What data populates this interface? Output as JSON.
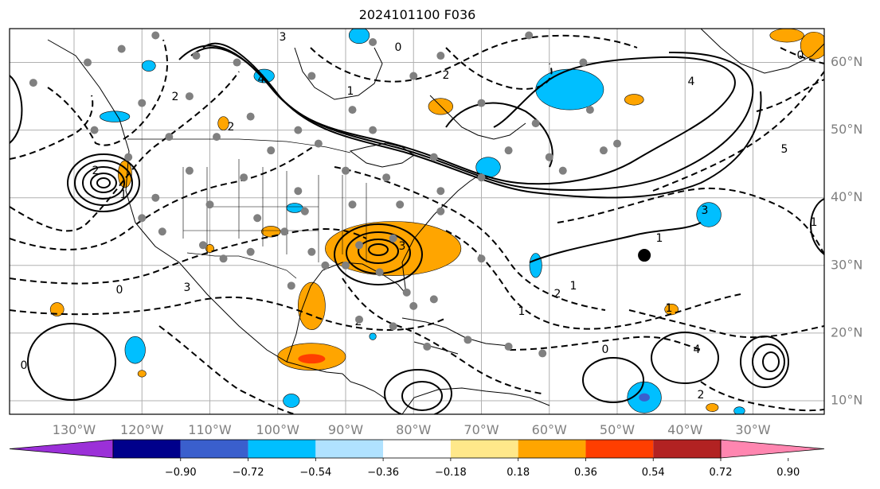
{
  "title": "2024101100 F036",
  "latitude_labels": [
    "60°N",
    "50°N",
    "40°N",
    "30°N",
    "20°N",
    "10°N"
  ],
  "longitude_labels": [
    "130°W",
    "120°W",
    "110°W",
    "100°W",
    "90°W",
    "80°W",
    "70°W",
    "60°W",
    "50°W",
    "40°W",
    "30°W"
  ],
  "colorbar": {
    "ticks": [
      "−0.90",
      "−0.72",
      "−0.54",
      "−0.36",
      "−0.18",
      "0.18",
      "0.36",
      "0.54",
      "0.72",
      "0.90"
    ],
    "colors": [
      "#9b30d8",
      "#00008b",
      "#3a5fcd",
      "#00bfff",
      "#b0e2ff",
      "#ffffff",
      "#ffe88a",
      "#ffa500",
      "#ff3e00",
      "#b22222",
      "#ff86b0"
    ]
  },
  "contour_labels": [
    "3",
    "4",
    "2",
    "2",
    "4",
    "0",
    "0",
    "1",
    "2",
    "3",
    "1",
    "2",
    "3",
    "5",
    "1",
    "2",
    "0",
    "1",
    "2",
    "3",
    "1",
    "2",
    "1",
    "0",
    "1",
    "0",
    "4"
  ],
  "colors": {
    "orange": "#ffa500",
    "light_yellow": "#ffe88a",
    "red": "#ff3e00",
    "deep_sky_blue": "#00bfff",
    "royal_blue": "#3a5fcd",
    "station_dot": "#808080",
    "grid": "#b0b0b0"
  },
  "map": {
    "lon_range": [
      -139.5,
      -19.5
    ],
    "lat_range": [
      8,
      65
    ],
    "large_black_marker": {
      "lon": -46,
      "lat": 31.5
    }
  },
  "stations": [
    [
      -128,
      60
    ],
    [
      -123,
      62
    ],
    [
      -118,
      64
    ],
    [
      -112,
      61
    ],
    [
      -106,
      60
    ],
    [
      -95,
      58
    ],
    [
      -86,
      63
    ],
    [
      -76,
      61
    ],
    [
      -63,
      64
    ],
    [
      -55,
      60
    ],
    [
      -136,
      57
    ],
    [
      -120,
      54
    ],
    [
      -113,
      55
    ],
    [
      -104,
      52
    ],
    [
      -97,
      50
    ],
    [
      -89,
      53
    ],
    [
      -80,
      58
    ],
    [
      -70,
      54
    ],
    [
      -62,
      51
    ],
    [
      -54,
      53
    ],
    [
      -127,
      50
    ],
    [
      -116,
      49
    ],
    [
      -109,
      49
    ],
    [
      -101,
      47
    ],
    [
      -94,
      48
    ],
    [
      -86,
      50
    ],
    [
      -77,
      46
    ],
    [
      -66,
      47
    ],
    [
      -58,
      44
    ],
    [
      -52,
      47
    ],
    [
      -122,
      46
    ],
    [
      -113,
      44
    ],
    [
      -105,
      43
    ],
    [
      -97,
      41
    ],
    [
      -90,
      44
    ],
    [
      -84,
      43
    ],
    [
      -76,
      41
    ],
    [
      -70,
      43
    ],
    [
      -60,
      46
    ],
    [
      -50,
      48
    ],
    [
      -118,
      40
    ],
    [
      -110,
      39
    ],
    [
      -103,
      37
    ],
    [
      -96,
      38
    ],
    [
      -89,
      39
    ],
    [
      -82,
      39
    ],
    [
      -76,
      38
    ],
    [
      -83,
      34
    ],
    [
      -88,
      33
    ],
    [
      -95,
      32
    ],
    [
      -104,
      32
    ],
    [
      -111,
      33
    ],
    [
      -117,
      35
    ],
    [
      -120,
      37
    ],
    [
      -98,
      27
    ],
    [
      -93,
      30
    ],
    [
      -90,
      30
    ],
    [
      -85,
      29
    ],
    [
      -81,
      26
    ],
    [
      -80,
      24
    ],
    [
      -77,
      25
    ],
    [
      -83,
      21
    ],
    [
      -88,
      22
    ],
    [
      -78,
      18
    ],
    [
      -72,
      19
    ],
    [
      -66,
      18
    ],
    [
      -61,
      17
    ],
    [
      -70,
      31
    ],
    [
      -99,
      35
    ],
    [
      -108,
      31
    ]
  ],
  "orange_blobs": [
    {
      "lon": -83,
      "lat": 32.5,
      "rx": 10,
      "ry": 4
    },
    {
      "lon": -95,
      "lat": 24,
      "rx": 2,
      "ry": 3.5
    },
    {
      "lon": -95,
      "lat": 16.5,
      "rx": 5,
      "ry": 2
    },
    {
      "lon": -76,
      "lat": 53.5,
      "rx": 1.8,
      "ry": 1.2
    },
    {
      "lon": -122.5,
      "lat": 43.5,
      "rx": 1,
      "ry": 2
    },
    {
      "lon": -101,
      "lat": 35,
      "rx": 1.4,
      "ry": 0.8
    },
    {
      "lon": -47.5,
      "lat": 54.5,
      "rx": 1.4,
      "ry": 0.8
    },
    {
      "lon": -25,
      "lat": 64,
      "rx": 2.5,
      "ry": 1
    },
    {
      "lon": -21,
      "lat": 62.5,
      "rx": 2,
      "ry": 2
    },
    {
      "lon": -42,
      "lat": 23.5,
      "rx": 1,
      "ry": 0.8
    },
    {
      "lon": -132.5,
      "lat": 23.5,
      "rx": 1,
      "ry": 1
    },
    {
      "lon": -36,
      "lat": 9,
      "rx": 0.9,
      "ry": 0.6
    },
    {
      "lon": -110,
      "lat": 32.5,
      "rx": 0.6,
      "ry": 0.6
    },
    {
      "lon": -108,
      "lat": 51,
      "rx": 0.8,
      "ry": 1
    },
    {
      "lon": -120,
      "lat": 14,
      "rx": 0.6,
      "ry": 0.5
    }
  ],
  "blue_blobs": [
    {
      "lon": -57,
      "lat": 56,
      "rx": 5,
      "ry": 3
    },
    {
      "lon": -69,
      "lat": 44.5,
      "rx": 1.8,
      "ry": 1.5
    },
    {
      "lon": -102,
      "lat": 58,
      "rx": 1.5,
      "ry": 1
    },
    {
      "lon": -88,
      "lat": 64,
      "rx": 1.5,
      "ry": 1.2
    },
    {
      "lon": -124,
      "lat": 52,
      "rx": 2.2,
      "ry": 0.8
    },
    {
      "lon": -121,
      "lat": 17.5,
      "rx": 1.5,
      "ry": 2
    },
    {
      "lon": -36.5,
      "lat": 37.5,
      "rx": 1.8,
      "ry": 1.8
    },
    {
      "lon": -62,
      "lat": 30,
      "rx": 0.9,
      "ry": 1.8
    },
    {
      "lon": -46,
      "lat": 10.5,
      "rx": 2.5,
      "ry": 2.3
    },
    {
      "lon": -97.5,
      "lat": 38.5,
      "rx": 1.2,
      "ry": 0.7
    },
    {
      "lon": -119,
      "lat": 59.5,
      "rx": 1,
      "ry": 0.8
    },
    {
      "lon": -98,
      "lat": 10,
      "rx": 1.2,
      "ry": 1
    },
    {
      "lon": -86,
      "lat": 19.5,
      "rx": 0.5,
      "ry": 0.5
    },
    {
      "lon": -32,
      "lat": 8.5,
      "rx": 0.8,
      "ry": 0.6
    }
  ]
}
